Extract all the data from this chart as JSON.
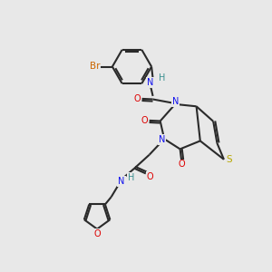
{
  "bg_color": "#e8e8e8",
  "bond_color": "#2a2a2a",
  "bond_lw": 1.5,
  "dbo": 0.06,
  "fs": 7.0,
  "colors": {
    "N": "#1010ee",
    "O": "#dd0000",
    "S": "#b8a800",
    "Br": "#cc6600",
    "H": "#3a9090"
  },
  "xlim": [
    0,
    10
  ],
  "ylim": [
    0,
    10
  ]
}
